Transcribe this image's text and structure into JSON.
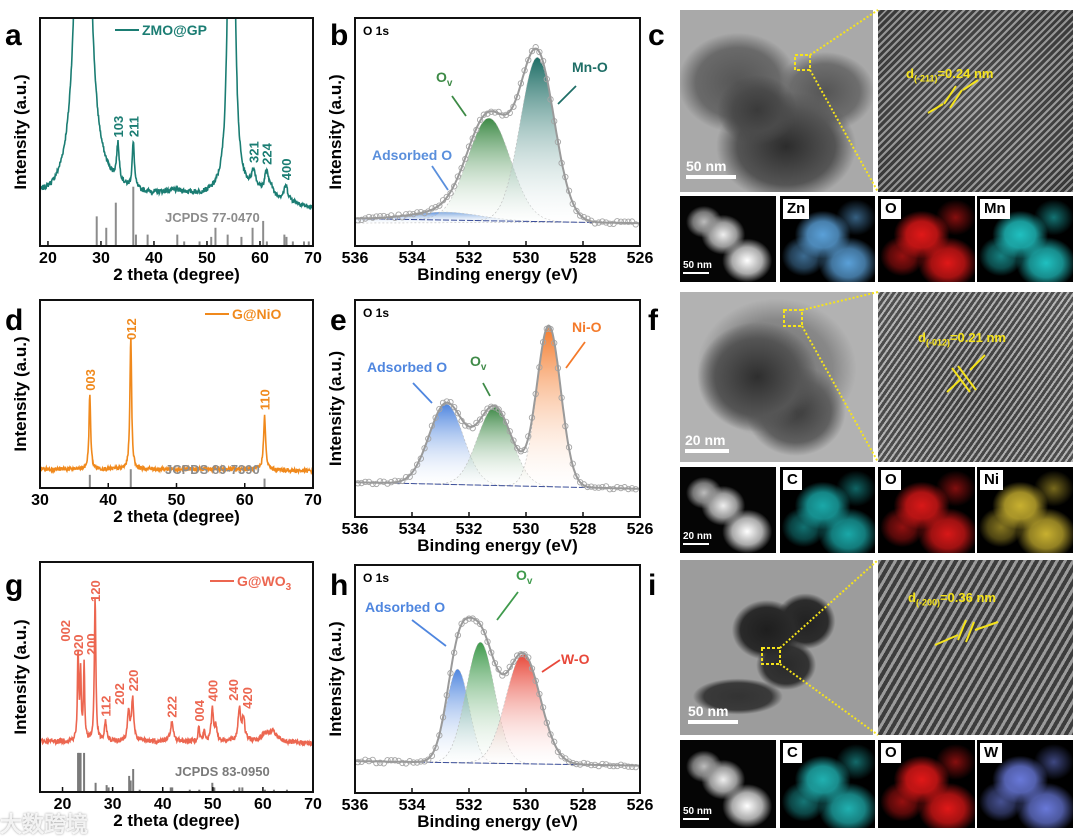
{
  "panel_labels": [
    "a",
    "b",
    "c",
    "d",
    "e",
    "f",
    "g",
    "h",
    "i"
  ],
  "chart_data": [
    {
      "panel": "a",
      "type": "line",
      "series_name": "ZMO@GP",
      "color": "#1b7d73",
      "xlabel": "2 theta (degree)",
      "ylabel": "Intensity (a.u.)",
      "xlim": [
        18.5,
        70
      ],
      "ylim": [
        0,
        100
      ],
      "xticks": [
        20,
        30,
        40,
        50,
        60,
        70
      ],
      "background": [
        [
          18.5,
          20
        ],
        [
          21,
          19
        ],
        [
          24,
          20
        ],
        [
          30,
          22
        ],
        [
          40,
          21
        ],
        [
          50,
          21
        ],
        [
          60,
          22
        ],
        [
          66,
          19
        ],
        [
          70,
          16
        ]
      ],
      "peaks": [
        {
          "x": 26.6,
          "h": 400,
          "w": 0.9
        },
        {
          "x": 33.2,
          "h": 16,
          "w": 0.3,
          "label": "103"
        },
        {
          "x": 36.1,
          "h": 20,
          "w": 0.25,
          "label": "211"
        },
        {
          "x": 44.0,
          "h": 2,
          "w": 3
        },
        {
          "x": 54.6,
          "h": 400,
          "w": 0.4
        },
        {
          "x": 58.8,
          "h": 8,
          "w": 0.5,
          "label": "321"
        },
        {
          "x": 61.2,
          "h": 9,
          "w": 0.4,
          "label": "224"
        },
        {
          "x": 62.0,
          "h": 4,
          "w": 0.4
        },
        {
          "x": 64.9,
          "h": 6,
          "w": 0.4,
          "label": "400"
        }
      ],
      "reference": {
        "label": "JCPDS 77-0470",
        "color": "#8c8c8c",
        "lines": [
          [
            29.2,
            13
          ],
          [
            31.0,
            8
          ],
          [
            32.8,
            19
          ],
          [
            36.1,
            26
          ],
          [
            36.6,
            5
          ],
          [
            38.8,
            5
          ],
          [
            44.4,
            5
          ],
          [
            45.7,
            2
          ],
          [
            48.6,
            2
          ],
          [
            50.8,
            4
          ],
          [
            51.6,
            8
          ],
          [
            53.9,
            5
          ],
          [
            56.5,
            4
          ],
          [
            58.6,
            8
          ],
          [
            60.6,
            11
          ],
          [
            61.3,
            2
          ],
          [
            64.6,
            5
          ],
          [
            65.0,
            4
          ],
          [
            66.2,
            2
          ],
          [
            68.3,
            2
          ],
          [
            69.2,
            2
          ]
        ]
      }
    },
    {
      "panel": "b",
      "type": "line",
      "title": "O 1s",
      "xlabel": "Binding energy (eV)",
      "ylabel": "Intensity (a.u.)",
      "xlim": [
        536,
        526
      ],
      "ylim": [
        0,
        100
      ],
      "xticks": [
        536,
        534,
        532,
        530,
        528,
        526
      ],
      "background": [
        [
          536,
          12
        ],
        [
          526,
          10
        ]
      ],
      "components": [
        {
          "label": "Adsorbed O",
          "center": 532.8,
          "height": 3.5,
          "sigma": 1.2,
          "color": "#5a8fdc"
        },
        {
          "label": "O",
          "label_sub": "v",
          "center": 531.3,
          "height": 45,
          "sigma": 0.75,
          "color": "#3d8a46"
        },
        {
          "label": "Mn-O",
          "center": 529.6,
          "height": 72,
          "sigma": 0.6,
          "color": "#1e6e66"
        }
      ]
    },
    {
      "panel": "d",
      "type": "line",
      "series_name": "G@NiO",
      "color": "#f0891c",
      "xlabel": "2 theta (degree)",
      "ylabel": "Intensity (a.u.)",
      "xlim": [
        30,
        70
      ],
      "ylim": [
        0,
        100
      ],
      "xticks": [
        30,
        40,
        50,
        60,
        70
      ],
      "background": [
        [
          30,
          10
        ],
        [
          40,
          10
        ],
        [
          50,
          10
        ],
        [
          60,
          10
        ],
        [
          70,
          9
        ]
      ],
      "peaks": [
        {
          "x": 37.3,
          "h": 39,
          "w": 0.15,
          "label": "003"
        },
        {
          "x": 43.3,
          "h": 70,
          "w": 0.15,
          "label": "012"
        },
        {
          "x": 62.9,
          "h": 29,
          "w": 0.18,
          "label": "110"
        }
      ],
      "reference": {
        "label": "JCPDS 89-7390",
        "color": "#8c8c8c",
        "lines": [
          [
            37.3,
            7
          ],
          [
            43.3,
            10
          ],
          [
            62.9,
            5
          ]
        ]
      }
    },
    {
      "panel": "e",
      "type": "line",
      "title": "O 1s",
      "xlabel": "Binding energy (eV)",
      "ylabel": "Intensity (a.u.)",
      "xlim": [
        536,
        526
      ],
      "ylim": [
        0,
        100
      ],
      "xticks": [
        536,
        534,
        532,
        530,
        528,
        526
      ],
      "background": [
        [
          536,
          16
        ],
        [
          526,
          13
        ]
      ],
      "components": [
        {
          "label": "Adsorbed O",
          "center": 532.8,
          "height": 37,
          "sigma": 0.6,
          "color": "#4f86df"
        },
        {
          "label": "O",
          "label_sub": "v",
          "center": 531.1,
          "height": 36,
          "sigma": 0.6,
          "color": "#3f8a48"
        },
        {
          "label": "Ni-O",
          "center": 529.2,
          "height": 74,
          "sigma": 0.42,
          "color": "#f47a2a"
        }
      ]
    },
    {
      "panel": "g",
      "type": "line",
      "series_name": "G@WO",
      "series_name_sub": "3",
      "color": "#ec6650",
      "xlabel": "2 theta (degree)",
      "ylabel": "Intensity (a.u.)",
      "xlim": [
        15.5,
        70
      ],
      "ylim": [
        0,
        100
      ],
      "xticks": [
        20,
        30,
        40,
        50,
        60,
        70
      ],
      "background": [
        [
          15.5,
          22
        ],
        [
          30,
          22
        ],
        [
          45,
          22
        ],
        [
          60,
          22
        ],
        [
          70,
          21
        ]
      ],
      "peaks": [
        {
          "x": 23.1,
          "h": 38,
          "w": 0.15,
          "label": "002"
        },
        {
          "x": 23.6,
          "h": 30,
          "w": 0.15,
          "label": "020"
        },
        {
          "x": 24.3,
          "h": 33,
          "w": 0.15,
          "label": "200"
        },
        {
          "x": 26.5,
          "h": 63,
          "w": 0.17,
          "label": "120"
        },
        {
          "x": 28.6,
          "h": 8,
          "w": 0.25,
          "label": "112"
        },
        {
          "x": 33.2,
          "h": 12,
          "w": 0.3,
          "label": "202"
        },
        {
          "x": 34.0,
          "h": 18,
          "w": 0.25,
          "label": "220"
        },
        {
          "x": 41.8,
          "h": 8,
          "w": 0.35,
          "label": "222"
        },
        {
          "x": 47.2,
          "h": 6,
          "w": 0.2,
          "label": "004"
        },
        {
          "x": 48.3,
          "h": 4,
          "w": 0.2
        },
        {
          "x": 49.9,
          "h": 14,
          "w": 0.25,
          "label": "400"
        },
        {
          "x": 50.6,
          "h": 6,
          "w": 0.3
        },
        {
          "x": 55.3,
          "h": 14,
          "w": 0.3,
          "label": "240"
        },
        {
          "x": 56.1,
          "h": 10,
          "w": 0.3,
          "label": "420"
        },
        {
          "x": 60.5,
          "h": 3,
          "w": 0.8
        },
        {
          "x": 62.0,
          "h": 4,
          "w": 0.9
        }
      ],
      "reference": {
        "label": "JCPDS 83-0950",
        "color": "#7a7a7a",
        "lines": [
          [
            23.1,
            17
          ],
          [
            23.3,
            17
          ],
          [
            23.6,
            17
          ],
          [
            24.3,
            17
          ],
          [
            26.6,
            4
          ],
          [
            28.8,
            3
          ],
          [
            29.2,
            2
          ],
          [
            33.3,
            7
          ],
          [
            33.6,
            5
          ],
          [
            34.1,
            10
          ],
          [
            35.4,
            1
          ],
          [
            41.6,
            2
          ],
          [
            41.9,
            2
          ],
          [
            45.4,
            1
          ],
          [
            47.3,
            1
          ],
          [
            49.9,
            4
          ],
          [
            50.3,
            2
          ],
          [
            54.2,
            1
          ],
          [
            55.3,
            2
          ],
          [
            55.9,
            2
          ],
          [
            60.4,
            1
          ],
          [
            62.2,
            1
          ],
          [
            64.8,
            1
          ]
        ]
      }
    },
    {
      "panel": "h",
      "type": "line",
      "title": "O 1s",
      "xlabel": "Binding energy (eV)",
      "ylabel": "Intensity (a.u.)",
      "xlim": [
        536,
        526
      ],
      "ylim": [
        0,
        100
      ],
      "xticks": [
        536,
        534,
        532,
        530,
        528,
        526
      ],
      "background": [
        [
          536,
          14
        ],
        [
          526,
          12
        ]
      ],
      "components": [
        {
          "label": "Adsorbed O",
          "center": 532.4,
          "height": 41,
          "sigma": 0.4,
          "color": "#4f86df"
        },
        {
          "label": "O",
          "label_sub": "v",
          "center": 531.6,
          "height": 53,
          "sigma": 0.5,
          "color": "#3f9a4c"
        },
        {
          "label": "W-O",
          "center": 530.1,
          "height": 48,
          "sigma": 0.6,
          "color": "#e8483a"
        }
      ]
    }
  ],
  "micrographs": {
    "c": {
      "tem_scale": "50 nm",
      "d_prefix": "d",
      "d_sub": "(-211)",
      "d_value": "=0.24 nm",
      "eds_scale": "50 nm",
      "maps": [
        "Zn",
        "O",
        "Mn"
      ],
      "map_colors": [
        "#5aa0d8",
        "#e01818",
        "#20c0c0"
      ]
    },
    "f": {
      "tem_scale": "20 nm",
      "d_prefix": "d",
      "d_sub": "(-012)",
      "d_value": "=0.21 nm",
      "eds_scale": "20 nm",
      "maps": [
        "C",
        "O",
        "Ni"
      ],
      "map_colors": [
        "#1aa8a8",
        "#d81818",
        "#c8b030"
      ]
    },
    "i": {
      "tem_scale": "50 nm",
      "d_prefix": "d",
      "d_sub": "(-200)",
      "d_value": "=0.36 nm",
      "eds_scale": "50 nm",
      "maps": [
        "C",
        "O",
        "W"
      ],
      "map_colors": [
        "#20b0b0",
        "#e01818",
        "#6878d8"
      ]
    }
  },
  "watermark": "大数跨境"
}
